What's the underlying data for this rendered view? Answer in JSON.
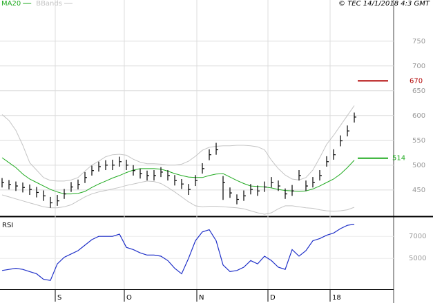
{
  "chart_data": [
    {
      "type": "ohlc",
      "source": "© TEC 14/1/2018 4:3 GMT",
      "xlim": [
        -0.3,
        56.7
      ],
      "ylim": [
        397,
        833
      ],
      "yticks": [
        450,
        500,
        550,
        600,
        650,
        700,
        750
      ],
      "grid": true,
      "bar_color": "#000000",
      "high": [
        474,
        470,
        467,
        465,
        461,
        456,
        449,
        436,
        440,
        452,
        466,
        471,
        486,
        499,
        507,
        510,
        511,
        517,
        511,
        500,
        493,
        489,
        490,
        496,
        490,
        480,
        472,
        462,
        480,
        504,
        532,
        545,
        478,
        455,
        441,
        449,
        462,
        459,
        467,
        476,
        469,
        453,
        460,
        490,
        469,
        476,
        490,
        518,
        532,
        560,
        580,
        606
      ],
      "low": [
        455,
        451,
        448,
        445,
        440,
        435,
        428,
        414,
        418,
        432,
        446,
        451,
        464,
        479,
        487,
        490,
        490,
        497,
        490,
        479,
        473,
        469,
        469,
        476,
        469,
        459,
        452,
        440,
        458,
        483,
        510,
        521,
        430,
        434,
        421,
        428,
        441,
        438,
        446,
        455,
        448,
        432,
        438,
        469,
        448,
        455,
        469,
        497,
        511,
        538,
        558,
        586
      ],
      "close": [
        465,
        461,
        458,
        455,
        451,
        445,
        438,
        424,
        428,
        442,
        456,
        461,
        475,
        489,
        497,
        500,
        500,
        507,
        500,
        489,
        483,
        479,
        479,
        486,
        479,
        469,
        462,
        451,
        469,
        493,
        521,
        531,
        465,
        444,
        431,
        438,
        451,
        448,
        456,
        465,
        458,
        442,
        448,
        479,
        458,
        465,
        479,
        507,
        521,
        549,
        569,
        597
      ],
      "series": [
        {
          "name": "MA20",
          "color": "#1faa1f",
          "values": [
            515,
            505,
            495,
            482,
            472,
            465,
            458,
            451,
            446,
            442,
            442,
            443,
            447,
            455,
            462,
            468,
            474,
            479,
            485,
            490,
            493,
            493,
            493,
            492,
            488,
            483,
            479,
            476,
            475,
            475,
            479,
            482,
            483,
            476,
            469,
            463,
            458,
            457,
            456,
            454,
            451,
            449,
            448,
            447,
            448,
            452,
            458,
            465,
            472,
            482,
            495,
            510
          ]
        },
        {
          "name": "BBands",
          "color": "#c4c4c4",
          "values": [
            602,
            590,
            570,
            540,
            505,
            490,
            475,
            469,
            468,
            468,
            470,
            475,
            488,
            500,
            508,
            517,
            521,
            522,
            520,
            512,
            506,
            503,
            503,
            502,
            500,
            500,
            502,
            508,
            518,
            530,
            536,
            538,
            539,
            539,
            540,
            540,
            539,
            537,
            531,
            510,
            493,
            480,
            472,
            470,
            475,
            490,
            515,
            542,
            560,
            580,
            600,
            620
          ],
          "lower": [
            440,
            436,
            432,
            428,
            424,
            420,
            416,
            414,
            414,
            416,
            420,
            428,
            436,
            442,
            446,
            449,
            452,
            455,
            459,
            462,
            465,
            468,
            467,
            463,
            455,
            446,
            436,
            426,
            418,
            416,
            417,
            417,
            416,
            415,
            414,
            412,
            408,
            404,
            401,
            404,
            412,
            418,
            418,
            416,
            414,
            413,
            410,
            408,
            407,
            408,
            410,
            415
          ]
        }
      ],
      "markers": [
        {
          "value": 670,
          "color": "#b00000"
        },
        {
          "value": 514,
          "color": "#1faa1f"
        }
      ]
    },
    {
      "type": "line",
      "title": "RSI",
      "xlim": [
        -0.3,
        56.7
      ],
      "ylim": [
        22,
        87
      ],
      "yticks": [
        {
          "value": 70,
          "label": "7000"
        },
        {
          "value": 50,
          "label": "5000"
        }
      ],
      "xticks": [
        {
          "value": 7.7,
          "label": "S"
        },
        {
          "value": 17.7,
          "label": "O"
        },
        {
          "value": 28.2,
          "label": "N"
        },
        {
          "value": 38.5,
          "label": "D"
        },
        {
          "value": 47.5,
          "label": "18"
        }
      ],
      "series": [
        {
          "color": "#1e2fc8",
          "values": [
            39,
            40,
            41,
            40,
            38,
            36,
            31,
            30,
            45,
            51,
            54,
            57,
            62,
            67,
            70,
            70,
            70,
            72,
            60,
            58,
            55,
            53,
            53,
            52,
            48,
            41,
            36,
            50,
            66,
            74,
            76,
            66,
            44,
            38,
            39,
            42,
            48,
            45,
            52,
            48,
            42,
            40,
            58,
            52,
            57,
            66,
            68,
            71,
            73,
            77,
            80,
            81
          ]
        }
      ]
    }
  ]
}
